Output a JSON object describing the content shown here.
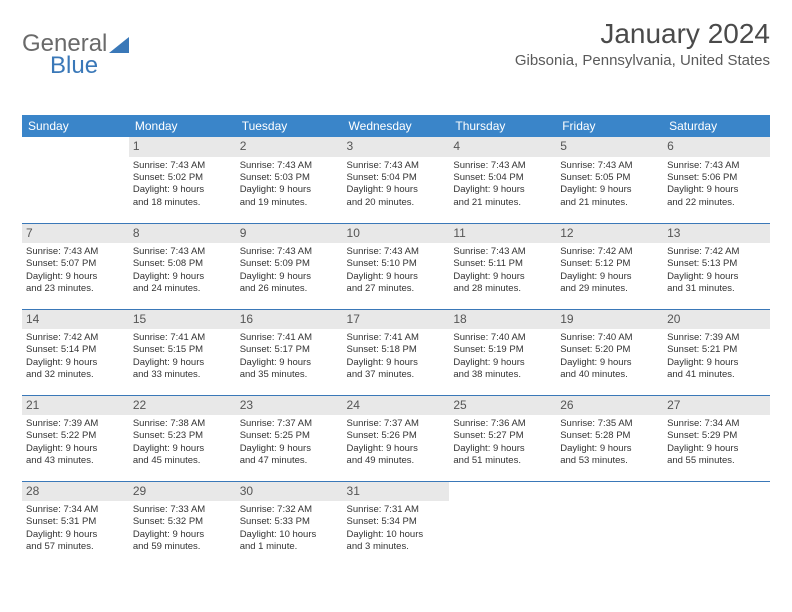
{
  "logo": {
    "part1": "General",
    "part2": "Blue"
  },
  "title": "January 2024",
  "location": "Gibsonia, Pennsylvania, United States",
  "colors": {
    "header_bg": "#3a85c9",
    "header_text": "#ffffff",
    "border": "#3a78b8",
    "daynum_bg": "#e8e8e8",
    "text": "#333333",
    "logo_gray": "#6a6a6a",
    "logo_blue": "#3a78b8"
  },
  "day_headers": [
    "Sunday",
    "Monday",
    "Tuesday",
    "Wednesday",
    "Thursday",
    "Friday",
    "Saturday"
  ],
  "weeks": [
    [
      {
        "day": "",
        "sunrise": "",
        "sunset": "",
        "daylight1": "",
        "daylight2": ""
      },
      {
        "day": "1",
        "sunrise": "Sunrise: 7:43 AM",
        "sunset": "Sunset: 5:02 PM",
        "daylight1": "Daylight: 9 hours",
        "daylight2": "and 18 minutes."
      },
      {
        "day": "2",
        "sunrise": "Sunrise: 7:43 AM",
        "sunset": "Sunset: 5:03 PM",
        "daylight1": "Daylight: 9 hours",
        "daylight2": "and 19 minutes."
      },
      {
        "day": "3",
        "sunrise": "Sunrise: 7:43 AM",
        "sunset": "Sunset: 5:04 PM",
        "daylight1": "Daylight: 9 hours",
        "daylight2": "and 20 minutes."
      },
      {
        "day": "4",
        "sunrise": "Sunrise: 7:43 AM",
        "sunset": "Sunset: 5:04 PM",
        "daylight1": "Daylight: 9 hours",
        "daylight2": "and 21 minutes."
      },
      {
        "day": "5",
        "sunrise": "Sunrise: 7:43 AM",
        "sunset": "Sunset: 5:05 PM",
        "daylight1": "Daylight: 9 hours",
        "daylight2": "and 21 minutes."
      },
      {
        "day": "6",
        "sunrise": "Sunrise: 7:43 AM",
        "sunset": "Sunset: 5:06 PM",
        "daylight1": "Daylight: 9 hours",
        "daylight2": "and 22 minutes."
      }
    ],
    [
      {
        "day": "7",
        "sunrise": "Sunrise: 7:43 AM",
        "sunset": "Sunset: 5:07 PM",
        "daylight1": "Daylight: 9 hours",
        "daylight2": "and 23 minutes."
      },
      {
        "day": "8",
        "sunrise": "Sunrise: 7:43 AM",
        "sunset": "Sunset: 5:08 PM",
        "daylight1": "Daylight: 9 hours",
        "daylight2": "and 24 minutes."
      },
      {
        "day": "9",
        "sunrise": "Sunrise: 7:43 AM",
        "sunset": "Sunset: 5:09 PM",
        "daylight1": "Daylight: 9 hours",
        "daylight2": "and 26 minutes."
      },
      {
        "day": "10",
        "sunrise": "Sunrise: 7:43 AM",
        "sunset": "Sunset: 5:10 PM",
        "daylight1": "Daylight: 9 hours",
        "daylight2": "and 27 minutes."
      },
      {
        "day": "11",
        "sunrise": "Sunrise: 7:43 AM",
        "sunset": "Sunset: 5:11 PM",
        "daylight1": "Daylight: 9 hours",
        "daylight2": "and 28 minutes."
      },
      {
        "day": "12",
        "sunrise": "Sunrise: 7:42 AM",
        "sunset": "Sunset: 5:12 PM",
        "daylight1": "Daylight: 9 hours",
        "daylight2": "and 29 minutes."
      },
      {
        "day": "13",
        "sunrise": "Sunrise: 7:42 AM",
        "sunset": "Sunset: 5:13 PM",
        "daylight1": "Daylight: 9 hours",
        "daylight2": "and 31 minutes."
      }
    ],
    [
      {
        "day": "14",
        "sunrise": "Sunrise: 7:42 AM",
        "sunset": "Sunset: 5:14 PM",
        "daylight1": "Daylight: 9 hours",
        "daylight2": "and 32 minutes."
      },
      {
        "day": "15",
        "sunrise": "Sunrise: 7:41 AM",
        "sunset": "Sunset: 5:15 PM",
        "daylight1": "Daylight: 9 hours",
        "daylight2": "and 33 minutes."
      },
      {
        "day": "16",
        "sunrise": "Sunrise: 7:41 AM",
        "sunset": "Sunset: 5:17 PM",
        "daylight1": "Daylight: 9 hours",
        "daylight2": "and 35 minutes."
      },
      {
        "day": "17",
        "sunrise": "Sunrise: 7:41 AM",
        "sunset": "Sunset: 5:18 PM",
        "daylight1": "Daylight: 9 hours",
        "daylight2": "and 37 minutes."
      },
      {
        "day": "18",
        "sunrise": "Sunrise: 7:40 AM",
        "sunset": "Sunset: 5:19 PM",
        "daylight1": "Daylight: 9 hours",
        "daylight2": "and 38 minutes."
      },
      {
        "day": "19",
        "sunrise": "Sunrise: 7:40 AM",
        "sunset": "Sunset: 5:20 PM",
        "daylight1": "Daylight: 9 hours",
        "daylight2": "and 40 minutes."
      },
      {
        "day": "20",
        "sunrise": "Sunrise: 7:39 AM",
        "sunset": "Sunset: 5:21 PM",
        "daylight1": "Daylight: 9 hours",
        "daylight2": "and 41 minutes."
      }
    ],
    [
      {
        "day": "21",
        "sunrise": "Sunrise: 7:39 AM",
        "sunset": "Sunset: 5:22 PM",
        "daylight1": "Daylight: 9 hours",
        "daylight2": "and 43 minutes."
      },
      {
        "day": "22",
        "sunrise": "Sunrise: 7:38 AM",
        "sunset": "Sunset: 5:23 PM",
        "daylight1": "Daylight: 9 hours",
        "daylight2": "and 45 minutes."
      },
      {
        "day": "23",
        "sunrise": "Sunrise: 7:37 AM",
        "sunset": "Sunset: 5:25 PM",
        "daylight1": "Daylight: 9 hours",
        "daylight2": "and 47 minutes."
      },
      {
        "day": "24",
        "sunrise": "Sunrise: 7:37 AM",
        "sunset": "Sunset: 5:26 PM",
        "daylight1": "Daylight: 9 hours",
        "daylight2": "and 49 minutes."
      },
      {
        "day": "25",
        "sunrise": "Sunrise: 7:36 AM",
        "sunset": "Sunset: 5:27 PM",
        "daylight1": "Daylight: 9 hours",
        "daylight2": "and 51 minutes."
      },
      {
        "day": "26",
        "sunrise": "Sunrise: 7:35 AM",
        "sunset": "Sunset: 5:28 PM",
        "daylight1": "Daylight: 9 hours",
        "daylight2": "and 53 minutes."
      },
      {
        "day": "27",
        "sunrise": "Sunrise: 7:34 AM",
        "sunset": "Sunset: 5:29 PM",
        "daylight1": "Daylight: 9 hours",
        "daylight2": "and 55 minutes."
      }
    ],
    [
      {
        "day": "28",
        "sunrise": "Sunrise: 7:34 AM",
        "sunset": "Sunset: 5:31 PM",
        "daylight1": "Daylight: 9 hours",
        "daylight2": "and 57 minutes."
      },
      {
        "day": "29",
        "sunrise": "Sunrise: 7:33 AM",
        "sunset": "Sunset: 5:32 PM",
        "daylight1": "Daylight: 9 hours",
        "daylight2": "and 59 minutes."
      },
      {
        "day": "30",
        "sunrise": "Sunrise: 7:32 AM",
        "sunset": "Sunset: 5:33 PM",
        "daylight1": "Daylight: 10 hours",
        "daylight2": "and 1 minute."
      },
      {
        "day": "31",
        "sunrise": "Sunrise: 7:31 AM",
        "sunset": "Sunset: 5:34 PM",
        "daylight1": "Daylight: 10 hours",
        "daylight2": "and 3 minutes."
      },
      {
        "day": "",
        "sunrise": "",
        "sunset": "",
        "daylight1": "",
        "daylight2": ""
      },
      {
        "day": "",
        "sunrise": "",
        "sunset": "",
        "daylight1": "",
        "daylight2": ""
      },
      {
        "day": "",
        "sunrise": "",
        "sunset": "",
        "daylight1": "",
        "daylight2": ""
      }
    ]
  ]
}
